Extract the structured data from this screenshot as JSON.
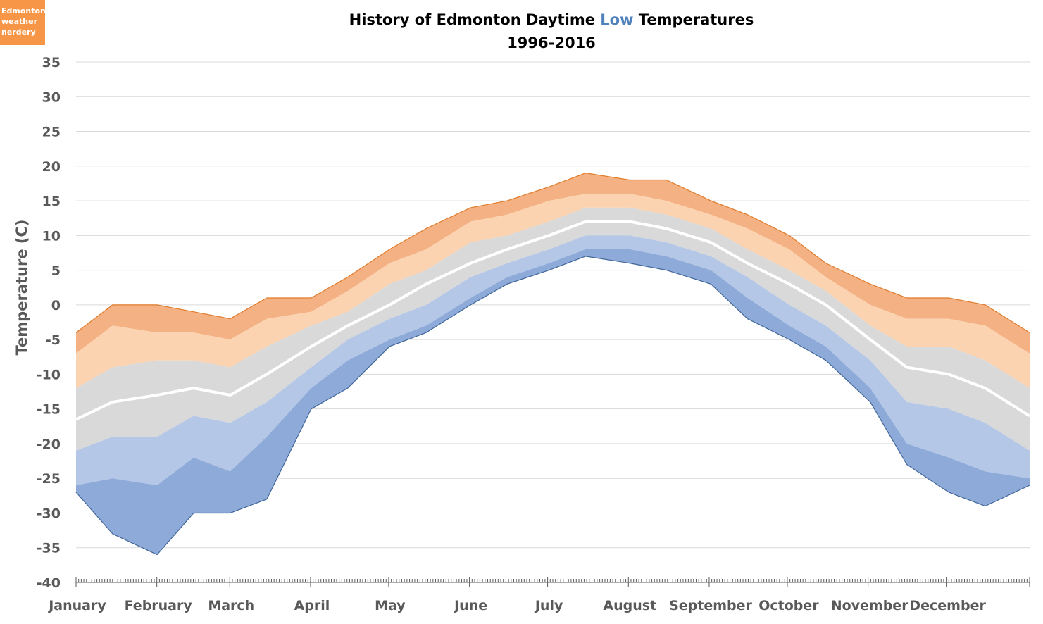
{
  "logo": {
    "lines": [
      "Edmonton",
      "weather",
      "nerdery"
    ],
    "color": "#f79646"
  },
  "chart_data": {
    "type": "area",
    "title_parts": [
      "History of Edmonton Daytime ",
      "Low",
      " Temperatures"
    ],
    "title_highlight_color": "#4f81bd",
    "subtitle": "1996-2016",
    "xlabel": "",
    "ylabel": "Temperature (C)",
    "ylim": [
      -40,
      35
    ],
    "yticks": [
      35,
      30,
      25,
      20,
      15,
      10,
      5,
      0,
      -5,
      -10,
      -15,
      -20,
      -25,
      -30,
      -35,
      -40
    ],
    "month_labels": [
      "January",
      "February",
      "March",
      "April",
      "May",
      "June",
      "July",
      "August",
      "September",
      "October",
      "November",
      "December"
    ],
    "month_start_days": [
      1,
      32,
      60,
      91,
      121,
      152,
      182,
      213,
      244,
      274,
      305,
      335,
      367
    ],
    "grid": true,
    "x_day_of_year": [
      1,
      15,
      32,
      46,
      60,
      74,
      91,
      105,
      121,
      135,
      152,
      166,
      182,
      196,
      213,
      227,
      244,
      258,
      274,
      288,
      305,
      319,
      335,
      349,
      366
    ],
    "series": [
      {
        "values": [
          -4,
          0,
          0,
          -1,
          -2,
          1,
          1,
          4,
          8,
          11,
          14,
          15,
          17,
          19,
          18,
          18,
          15,
          13,
          10,
          6,
          3,
          1,
          1,
          0,
          -4
        ]
      },
      {
        "values": [
          -7,
          -3,
          -4,
          -4,
          -5,
          -2,
          -1,
          2,
          6,
          8,
          12,
          13,
          15,
          16,
          16,
          15,
          13,
          11,
          8,
          4,
          0,
          -2,
          -2,
          -3,
          -7
        ]
      },
      {
        "values": [
          -12,
          -9,
          -8,
          -8,
          -9,
          -6,
          -3,
          -1,
          3,
          5,
          9,
          10,
          12,
          14,
          14,
          13,
          11,
          8,
          5,
          2,
          -3,
          -6,
          -6,
          -8,
          -12
        ]
      },
      {
        "values": [
          -16.5,
          -14,
          -13,
          -12,
          -13,
          -10,
          -6,
          -3,
          0,
          3,
          6,
          8,
          10,
          12,
          12,
          11,
          9,
          6,
          3,
          0,
          -5,
          -9,
          -10,
          -12,
          -16
        ]
      },
      {
        "values": [
          -21,
          -19,
          -19,
          -16,
          -17,
          -14,
          -9,
          -5,
          -2,
          0,
          4,
          6,
          8,
          10,
          10,
          9,
          7,
          4,
          0,
          -3,
          -8,
          -14,
          -15,
          -17,
          -21
        ]
      },
      {
        "values": [
          -26,
          -25,
          -26,
          -22,
          -24,
          -19,
          -12,
          -8,
          -5,
          -3,
          1,
          4,
          6,
          8,
          8,
          7,
          5,
          1,
          -3,
          -6,
          -12,
          -20,
          -22,
          -24,
          -25
        ]
      },
      {
        "values": [
          -27,
          -33,
          -36,
          -30,
          -30,
          -28,
          -15,
          -12,
          -6,
          -4,
          0,
          3,
          5,
          7,
          6,
          5,
          3,
          -2,
          -5,
          -8,
          -14,
          -23,
          -27,
          -29,
          -26
        ]
      }
    ],
    "band_colors": [
      "#f4b183",
      "#fbd3b0",
      "#d9d9d9",
      "#d9d9d9",
      "#b4c7e7",
      "#8eaad8"
    ],
    "max_line_color": "#e07b2a",
    "min_line_color": "#41679a",
    "median_line_color": "#ffffff"
  }
}
